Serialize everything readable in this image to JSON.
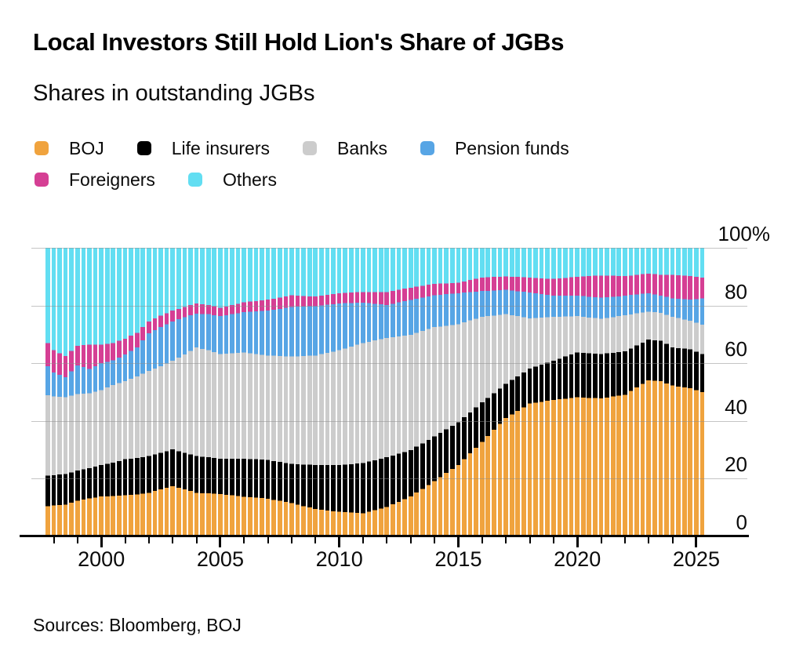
{
  "header": {
    "title": "Local Investors Still Hold Lion's Share of JGBs",
    "subtitle": "Shares in outstanding JGBs"
  },
  "legend": {
    "items": [
      {
        "label": "BOJ",
        "color": "#F0A33E"
      },
      {
        "label": "Life insurers",
        "color": "#000000"
      },
      {
        "label": "Banks",
        "color": "#CCCCCC"
      },
      {
        "label": "Pension funds",
        "color": "#57A5E5"
      },
      {
        "label": "Foreigners",
        "color": "#D53F94"
      },
      {
        "label": "Others",
        "color": "#62DEF2"
      }
    ],
    "items_per_row": 4
  },
  "source": {
    "text": "Sources: Bloomberg, BOJ"
  },
  "chart_data": {
    "type": "bar",
    "variant": "stacked-100-percent",
    "title": "Shares in outstanding JGBs",
    "unit": "%",
    "grid": true,
    "legend_position": "top-left",
    "y_axis": {
      "range": [
        0,
        100
      ],
      "tick_labels": [
        "100%",
        "80",
        "60",
        "40",
        "20",
        "0"
      ],
      "tick_values": [
        100,
        80,
        60,
        40,
        20,
        0
      ],
      "side": "right"
    },
    "x_axis": {
      "labeled_years": [
        2000,
        2005,
        2010,
        2015,
        2020,
        2025
      ],
      "minor_tick_every_years": 1,
      "first_tick_year": 1998,
      "last_tick_year": 2025
    },
    "bars_time_range": [
      1997.75,
      2025.25
    ],
    "bar_period_years": 0.25,
    "anchor_years": [
      1997.75,
      1998,
      1998.5,
      1999,
      1999.5,
      2000,
      2000.5,
      2001,
      2001.5,
      2002,
      2002.5,
      2003,
      2003.5,
      2004,
      2004.5,
      2005,
      2006,
      2007,
      2008,
      2009,
      2010,
      2011,
      2012,
      2013,
      2014,
      2015,
      2016,
      2017,
      2018,
      2019,
      2020,
      2021,
      2022,
      2023,
      2023.5,
      2024,
      2024.75,
      2025.25
    ],
    "series": [
      {
        "name": "BOJ",
        "color": "#F0A33E",
        "values": [
          10.5,
          10.8,
          11.0,
          12.3,
          13.2,
          13.8,
          14.0,
          14.2,
          14.5,
          15.1,
          16.3,
          17.4,
          16.3,
          15.1,
          14.9,
          14.7,
          13.7,
          13.1,
          11.5,
          9.5,
          8.5,
          8.0,
          10.2,
          13.8,
          19.2,
          24.7,
          32.8,
          41.0,
          46.0,
          47.3,
          48.2,
          47.8,
          49.1,
          54.1,
          53.8,
          52.3,
          51.3,
          50.0
        ]
      },
      {
        "name": "Life insurers",
        "color": "#000000",
        "values": [
          10.5,
          10.4,
          10.6,
          10.5,
          10.4,
          10.9,
          11.5,
          12.5,
          12.7,
          12.7,
          12.7,
          12.7,
          12.7,
          12.7,
          12.5,
          12.2,
          13.2,
          13.4,
          13.6,
          15.2,
          16.2,
          17.4,
          17.2,
          16.1,
          15.4,
          14.9,
          13.6,
          11.8,
          12.2,
          13.6,
          15.5,
          15.4,
          15.0,
          14.1,
          14.0,
          13.2,
          13.5,
          13.2
        ]
      },
      {
        "name": "Banks",
        "color": "#CCCCCC",
        "values": [
          27.9,
          27.3,
          26.6,
          26.5,
          26.0,
          26.0,
          27.0,
          27.1,
          28.3,
          29.5,
          30.0,
          30.8,
          34.0,
          37.7,
          37.1,
          36.3,
          36.8,
          36.2,
          37.2,
          38.0,
          39.8,
          41.6,
          41.4,
          40.0,
          37.9,
          33.9,
          29.7,
          24.2,
          17.4,
          15.2,
          12.6,
          12.2,
          12.5,
          9.7,
          9.7,
          10.6,
          9.9,
          10.2
        ]
      },
      {
        "name": "Pension funds",
        "color": "#57A5E5",
        "values": [
          10.0,
          8.3,
          7.0,
          10.0,
          8.4,
          9.3,
          8.5,
          9.2,
          10.0,
          13.1,
          13.5,
          13.6,
          13.0,
          11.7,
          12.5,
          13.1,
          14.0,
          15.5,
          17.2,
          17.1,
          16.2,
          14.0,
          11.4,
          12.0,
          11.0,
          10.8,
          8.9,
          8.4,
          8.9,
          7.3,
          7.1,
          7.3,
          6.8,
          6.4,
          5.9,
          6.4,
          7.3,
          9.1
        ]
      },
      {
        "name": "Foreigners",
        "color": "#D53F94",
        "values": [
          8.1,
          7.7,
          7.3,
          6.7,
          8.5,
          6.5,
          6.0,
          5.5,
          5.0,
          4.1,
          4.0,
          3.7,
          3.5,
          3.5,
          3.2,
          2.9,
          3.4,
          3.8,
          4.1,
          3.3,
          3.5,
          3.7,
          4.5,
          4.3,
          4.0,
          3.6,
          4.7,
          4.7,
          5.2,
          5.8,
          6.6,
          7.7,
          6.8,
          6.8,
          7.2,
          8.1,
          8.2,
          7.2
        ]
      },
      {
        "name": "Others",
        "color": "#62DEF2",
        "values": [
          33.0,
          35.5,
          37.5,
          34.0,
          33.5,
          33.5,
          33.0,
          31.5,
          29.5,
          25.5,
          23.5,
          21.8,
          20.5,
          19.3,
          19.8,
          20.8,
          18.9,
          18.0,
          16.4,
          16.9,
          15.8,
          15.3,
          15.3,
          13.8,
          12.5,
          12.1,
          10.3,
          9.9,
          10.3,
          10.8,
          10.0,
          9.6,
          9.8,
          8.9,
          9.4,
          9.4,
          9.8,
          10.3
        ]
      }
    ]
  }
}
